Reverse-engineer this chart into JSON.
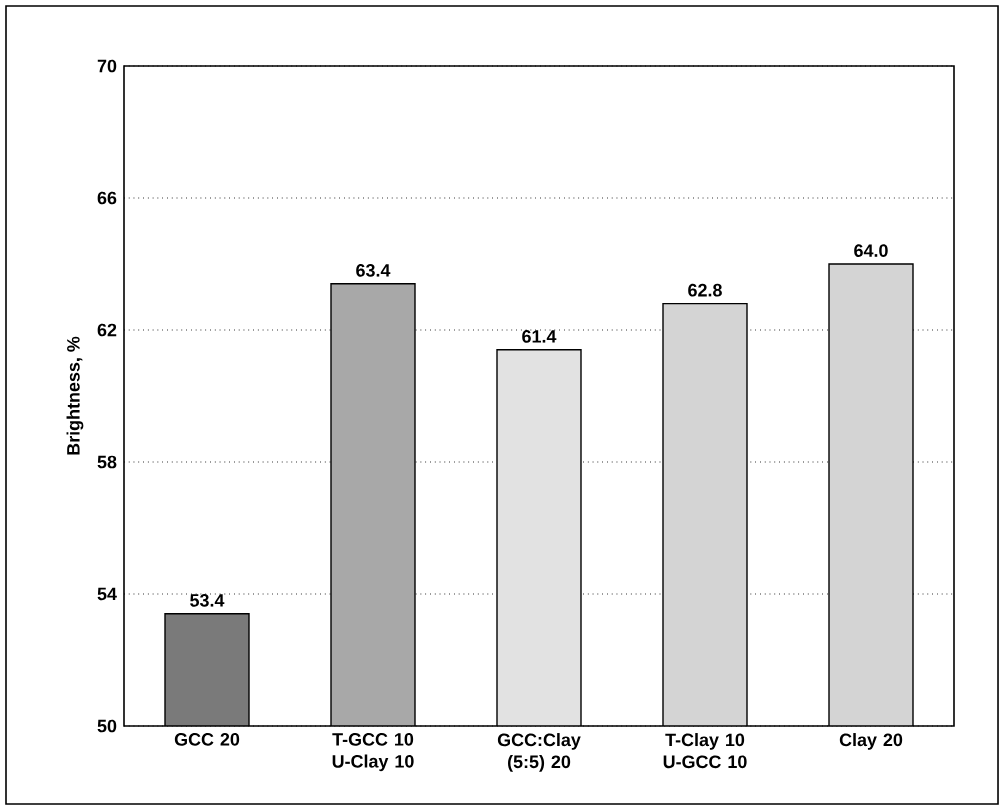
{
  "chart_data": {
    "type": "bar",
    "ylabel": "Brightness, %",
    "categories": [
      "GCC 20",
      "T-GCC 10 U-Clay 10",
      "GCC:Clay (5:5) 20",
      "T-Clay 10 U-GCC 10",
      "Clay 20"
    ],
    "values": [
      53.4,
      63.4,
      61.4,
      62.8,
      64.0
    ],
    "value_labels": [
      "53.4",
      "63.4",
      "61.4",
      "62.8",
      "64.0"
    ],
    "colors": [
      "#7a7a7a",
      "#a8a8a8",
      "#e2e2e2",
      "#d4d4d4",
      "#d4d4d4"
    ],
    "ylim": [
      50,
      70
    ],
    "yticks": [
      50,
      54,
      58,
      62,
      66,
      70
    ],
    "grid": "y"
  }
}
